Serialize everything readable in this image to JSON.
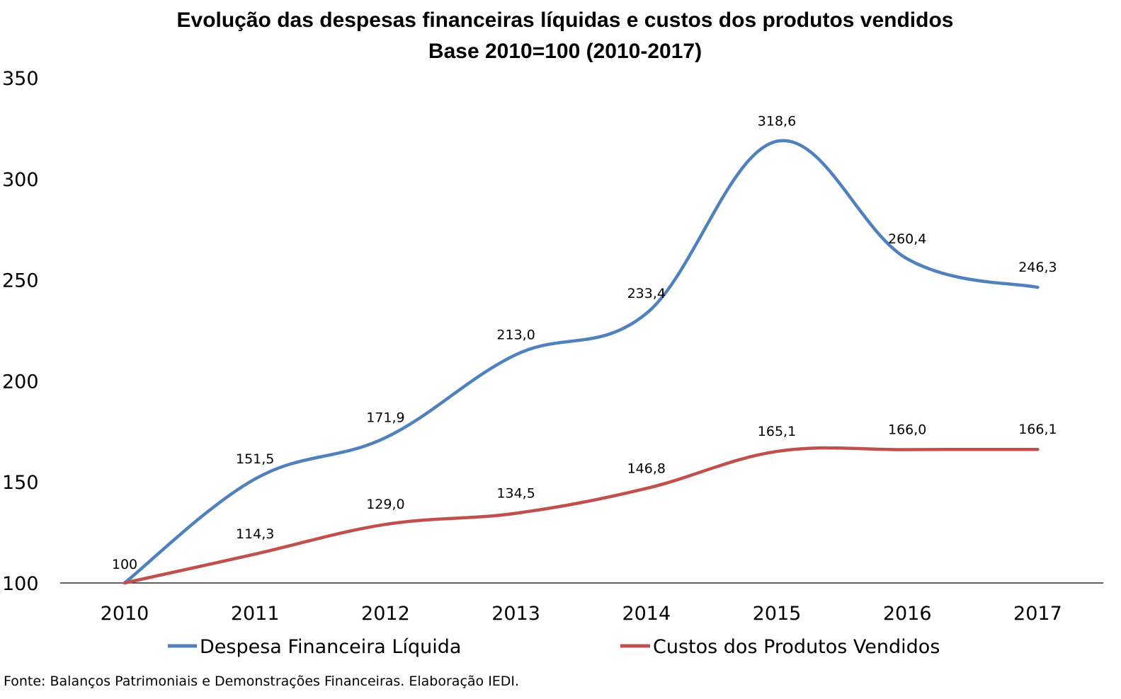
{
  "chart_data": {
    "type": "line",
    "title": "Evolução das despesas financeiras líquidas e custos dos produtos vendidos",
    "subtitle": "Base 2010=100 (2010-2017)",
    "categories": [
      "2010",
      "2011",
      "2012",
      "2013",
      "2014",
      "2015",
      "2016",
      "2017"
    ],
    "series": [
      {
        "name": "Despesa Financeira Líquida",
        "color": "#4F81BD",
        "values": [
          100,
          151.5,
          171.9,
          213.0,
          233.4,
          318.6,
          260.4,
          246.3
        ],
        "labels": [
          "100",
          "151,5",
          "171,9",
          "213,0",
          "233,4",
          "318,6",
          "260,4",
          "246,3"
        ]
      },
      {
        "name": "Custos dos Produtos Vendidos",
        "color": "#C0504D",
        "values": [
          100,
          114.3,
          129.0,
          134.5,
          146.8,
          165.1,
          166.0,
          166.1
        ],
        "labels": [
          "",
          "114,3",
          "129,0",
          "134,5",
          "146,8",
          "165,1",
          "166,0",
          "166,1"
        ]
      }
    ],
    "y_ticks": [
      "100",
      "150",
      "200",
      "250",
      "300",
      "350"
    ],
    "ylim": [
      100,
      350
    ],
    "grid": false,
    "legend_position": "bottom",
    "smooth": true
  },
  "source": "Fonte: Balanços Patrimoniais e Demonstrações Financeiras. Elaboração IEDI."
}
